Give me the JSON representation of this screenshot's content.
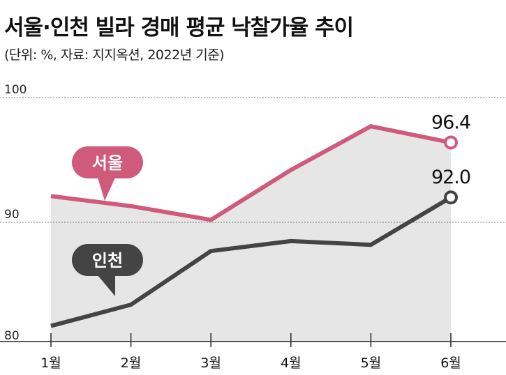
{
  "chart_data": {
    "type": "line",
    "title": "서울·인천 빌라 경매 평균 낙찰가율 추이",
    "subtitle": "(단위: %, 자료: 지지옥션, 2022년 기준)",
    "categories": [
      "1월",
      "2월",
      "3월",
      "4월",
      "5월",
      "6월"
    ],
    "yticks": [
      "100",
      "90",
      "80"
    ],
    "ylim": [
      80,
      100
    ],
    "grid": true,
    "series": [
      {
        "name": "서울",
        "color": "#d05a7c",
        "values": [
          92.1,
          91.3,
          90.2,
          94.2,
          97.7,
          96.4
        ],
        "end_label": "96.4"
      },
      {
        "name": "인천",
        "color": "#444444",
        "values": [
          81.7,
          83.4,
          87.7,
          88.5,
          88.2,
          92.0
        ],
        "end_label": "92.0"
      }
    ]
  }
}
